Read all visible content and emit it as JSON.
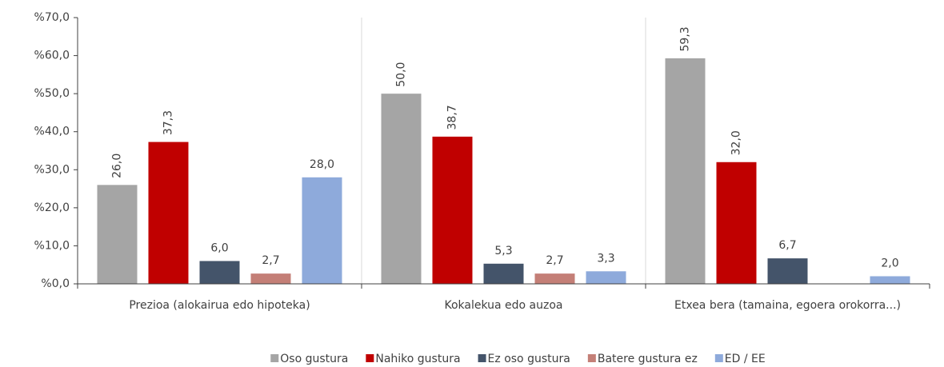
{
  "chart_data": {
    "type": "bar",
    "categories": [
      "Prezioa (alokairua edo hipoteka)",
      "Kokalekua edo auzoa",
      "Etxea bera (tamaina, egoera orokorra...)"
    ],
    "series": [
      {
        "name": "Oso gustura",
        "color": "#a5a5a5",
        "values": [
          26.0,
          50.0,
          59.3
        ],
        "value_labels": [
          "26,0",
          "50,0",
          "59,3"
        ]
      },
      {
        "name": "Nahiko gustura",
        "color": "#c00000",
        "values": [
          37.3,
          38.7,
          32.0
        ],
        "value_labels": [
          "37,3",
          "38,7",
          "32,0"
        ]
      },
      {
        "name": "Ez oso gustura",
        "color": "#44546a",
        "values": [
          6.0,
          5.3,
          6.7
        ],
        "value_labels": [
          "6,0",
          "5,3",
          "6,7"
        ]
      },
      {
        "name": "Batere gustura ez",
        "color": "#c47f77",
        "values": [
          2.7,
          2.7,
          null
        ],
        "value_labels": [
          "2,7",
          "2,7",
          null
        ]
      },
      {
        "name": "ED / EE",
        "color": "#8eaadb",
        "values": [
          28.0,
          3.3,
          2.0
        ],
        "value_labels": [
          "28,0",
          "3,3",
          "2,0"
        ]
      }
    ],
    "ylim": [
      0,
      70
    ],
    "yticks": [
      {
        "value": 0,
        "label": "%0,0"
      },
      {
        "value": 10,
        "label": "%10,0"
      },
      {
        "value": 20,
        "label": "%20,0"
      },
      {
        "value": 30,
        "label": "%30,0"
      },
      {
        "value": 40,
        "label": "%40,0"
      },
      {
        "value": 50,
        "label": "%50,0"
      },
      {
        "value": 60,
        "label": "%60,0"
      },
      {
        "value": 70,
        "label": "%70,0"
      }
    ],
    "legend": "bottom"
  }
}
